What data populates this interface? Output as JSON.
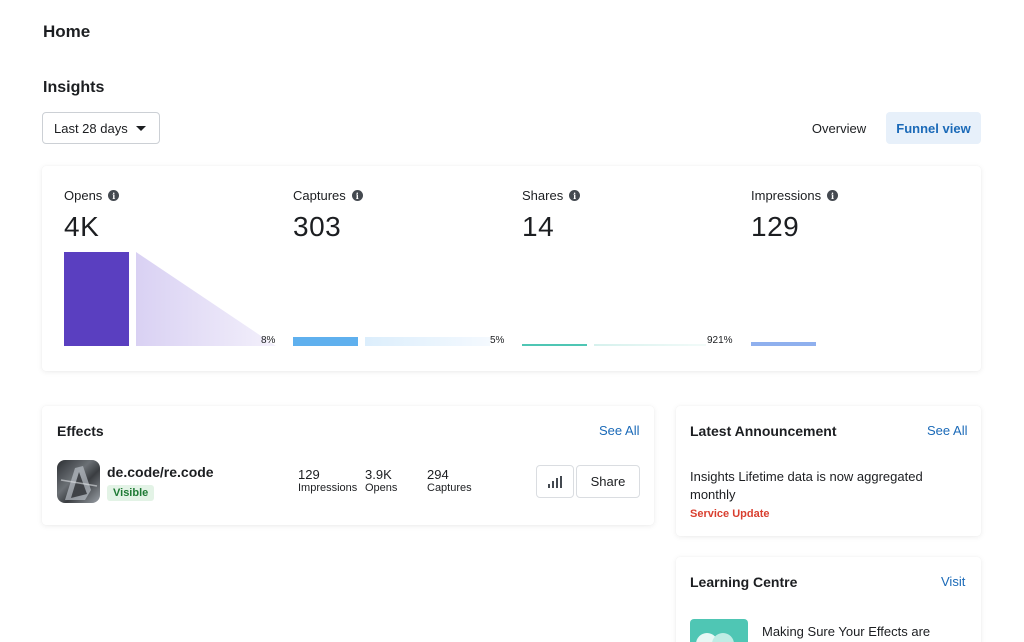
{
  "page": {
    "title": "Home"
  },
  "insights": {
    "title": "Insights",
    "date_range": "Last 28 days",
    "views": {
      "overview": "Overview",
      "funnel": "Funnel view",
      "active": "Funnel view"
    },
    "info_icon": "info-icon",
    "metrics": [
      {
        "label": "Opens",
        "value": "4K"
      },
      {
        "label": "Captures",
        "value": "303"
      },
      {
        "label": "Shares",
        "value": "14"
      },
      {
        "label": "Impressions",
        "value": "129"
      }
    ],
    "conversions": [
      "8%",
      "5%",
      "921%"
    ],
    "colors": {
      "opens": "#5a3fc0",
      "captures": "#5fb0ee",
      "shares": "#4fc6b4",
      "impressions": "#8fb0ee"
    }
  },
  "effects": {
    "title": "Effects",
    "see_all": "See All",
    "items": [
      {
        "name": "de.code/re.code",
        "status": "Visible",
        "stats": [
          {
            "value": "129",
            "label": "Impressions"
          },
          {
            "value": "3.9K",
            "label": "Opens"
          },
          {
            "value": "294",
            "label": "Captures"
          }
        ],
        "chart_icon": "bar-chart-icon",
        "share_label": "Share"
      }
    ]
  },
  "announcement": {
    "title": "Latest Announcement",
    "see_all": "See All",
    "text": "Insights Lifetime data is now aggregated monthly",
    "tag": "Service Update",
    "tag_color": "#d93f2f"
  },
  "learning": {
    "title": "Learning Centre",
    "visit": "Visit",
    "item_text": "Making Sure Your Effects are"
  }
}
